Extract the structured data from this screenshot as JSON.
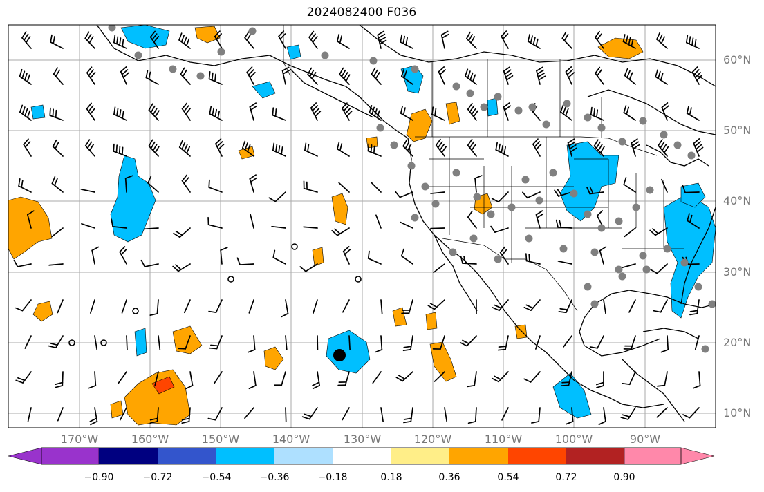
{
  "title": "2024082400 F036",
  "lat_labels": [
    "60°N",
    "50°N",
    "40°N",
    "30°N",
    "20°N",
    "10°N"
  ],
  "lon_labels": [
    "170°W",
    "160°W",
    "150°W",
    "140°W",
    "130°W",
    "120°W",
    "110°W",
    "100°W",
    "90°W"
  ],
  "colorbar": {
    "labels": [
      "−0.90",
      "−0.72",
      "−0.54",
      "−0.36",
      "−0.18",
      "0.18",
      "0.36",
      "0.54",
      "0.72",
      "0.90"
    ],
    "colors": [
      "#9933cc",
      "#000080",
      "#3355cc",
      "#00bfff",
      "#aee0ff",
      "#ffffff",
      "#ffee88",
      "#ffa500",
      "#ff4500",
      "#b22222",
      "#ff88aa"
    ]
  },
  "colors": {
    "grid": "#aaaaaa",
    "coast": "#000000",
    "station": "#808080",
    "orange": "#ffa500",
    "lightblue": "#aee0ff",
    "blue": "#00bfff",
    "red": "#ff4500"
  }
}
